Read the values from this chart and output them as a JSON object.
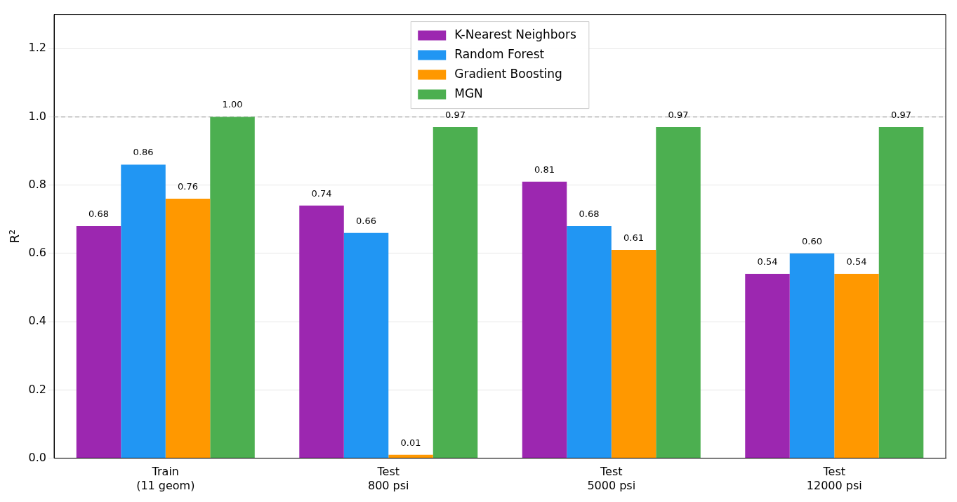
{
  "chart_data": {
    "type": "bar",
    "ylabel": "R²",
    "categories": [
      "Train\n(11 geom)",
      "Test\n800 psi",
      "Test\n5000 psi",
      "Test\n12000 psi"
    ],
    "series": [
      {
        "name": "K-Nearest Neighbors",
        "color": "#9c27b0",
        "values": [
          0.68,
          0.74,
          0.81,
          0.54
        ],
        "value_labels": [
          "0.68",
          "0.74",
          "0.81",
          "0.54"
        ]
      },
      {
        "name": "Random Forest",
        "color": "#2196f3",
        "values": [
          0.86,
          0.66,
          0.68,
          0.6
        ],
        "value_labels": [
          "0.86",
          "0.66",
          "0.68",
          "0.60"
        ]
      },
      {
        "name": "Gradient Boosting",
        "color": "#ff9800",
        "values": [
          0.76,
          0.01,
          0.61,
          0.54
        ],
        "value_labels": [
          "0.76",
          "0.01",
          "0.61",
          "0.54"
        ]
      },
      {
        "name": "MGN",
        "color": "#4caf50",
        "values": [
          1.0,
          0.97,
          0.97,
          0.97
        ],
        "value_labels": [
          "1.00",
          "0.97",
          "0.97",
          "0.97"
        ]
      }
    ],
    "ylim": [
      0,
      1.3
    ],
    "yticks": [
      {
        "value": 0,
        "label": "0.0"
      },
      0.2,
      0.4,
      0.6,
      0.8,
      {
        "value": 1,
        "label": "1.0"
      },
      1.2
    ],
    "grid": "y",
    "legend": "top",
    "ref_lines": [
      {
        "axis": "y",
        "value": 1.0,
        "color": "#b0b0b0",
        "line_style": "dashed"
      }
    ]
  }
}
